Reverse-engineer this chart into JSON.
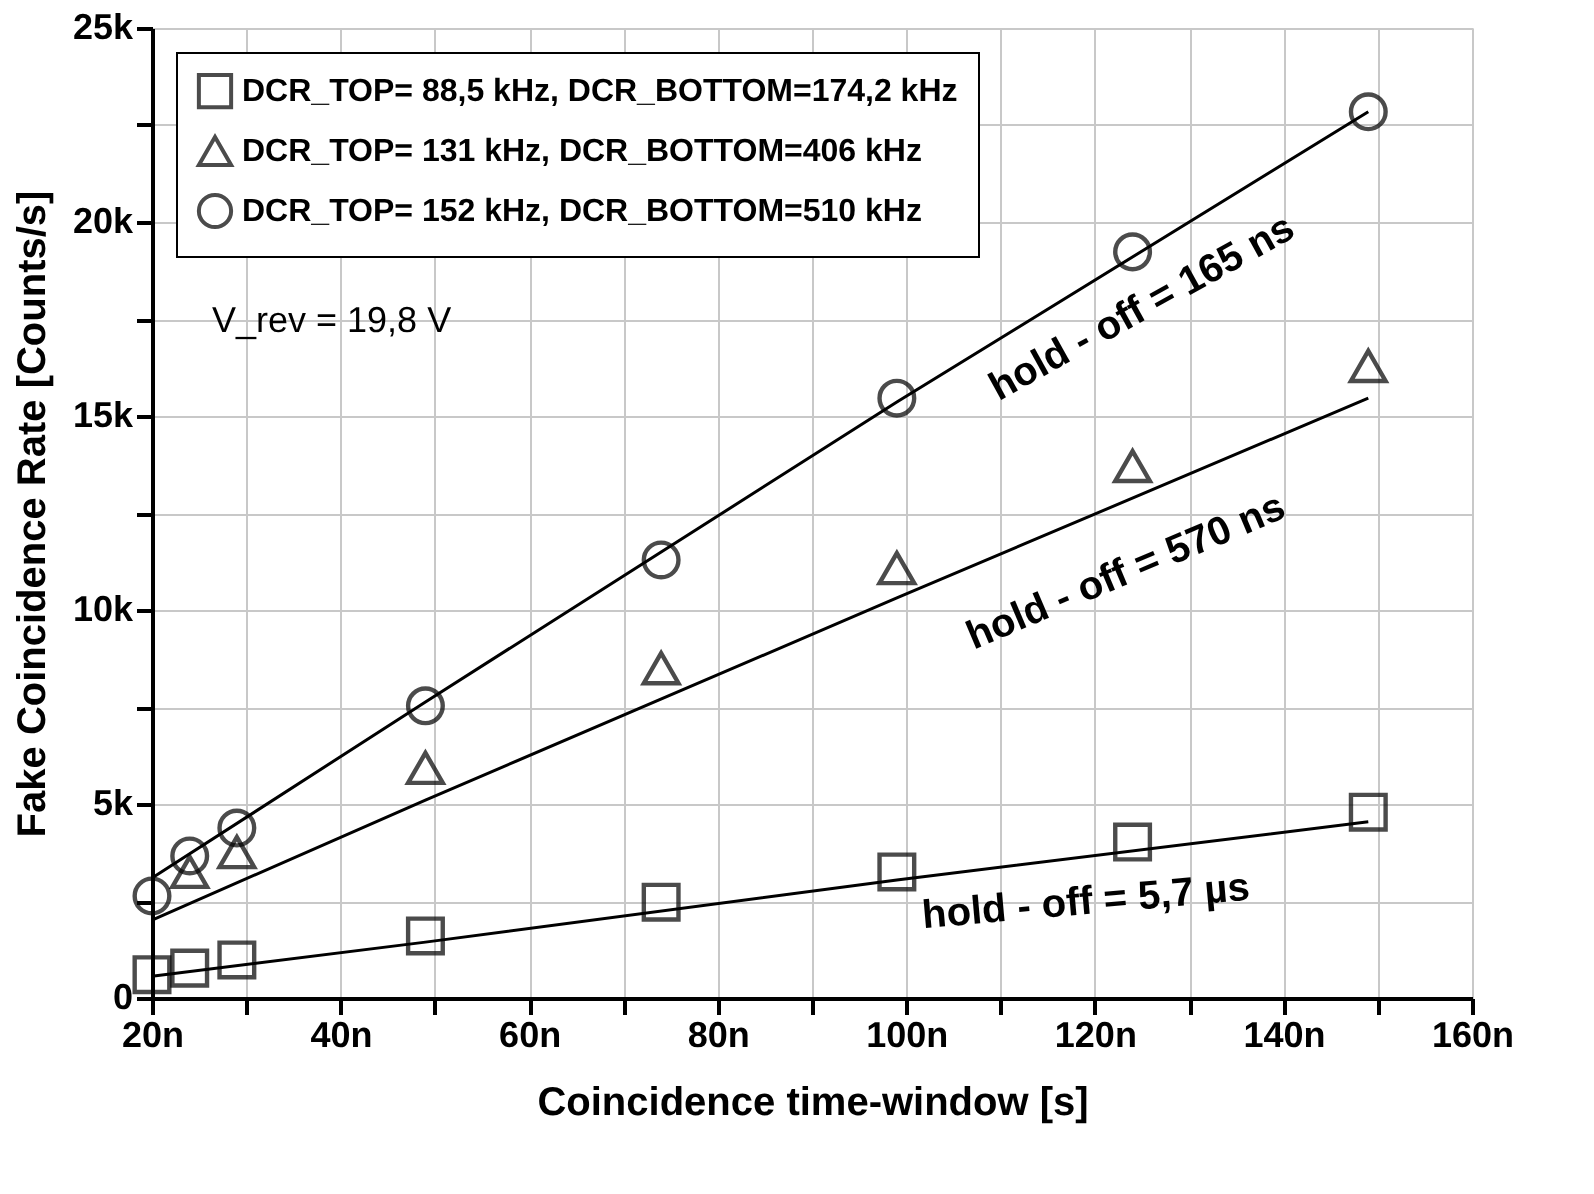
{
  "chart_data": {
    "type": "scatter",
    "xlabel": "Coincidence time-window [s]",
    "ylabel": "Fake Coincidence Rate [Counts/s]",
    "xlim": [
      20,
      160
    ],
    "ylim": [
      0,
      25000
    ],
    "xticks": [
      {
        "value": 20,
        "label": "20n"
      },
      {
        "value": 30,
        "label": null
      },
      {
        "value": 40,
        "label": "40n"
      },
      {
        "value": 50,
        "label": null
      },
      {
        "value": 60,
        "label": "60n"
      },
      {
        "value": 70,
        "label": null
      },
      {
        "value": 80,
        "label": "80n"
      },
      {
        "value": 90,
        "label": null
      },
      {
        "value": 100,
        "label": "100n"
      },
      {
        "value": 110,
        "label": null
      },
      {
        "value": 120,
        "label": "120n"
      },
      {
        "value": 130,
        "label": null
      },
      {
        "value": 140,
        "label": "140n"
      },
      {
        "value": 150,
        "label": null
      },
      {
        "value": 160,
        "label": "160n"
      }
    ],
    "yticks": [
      0,
      {
        "value": 2500,
        "label": null
      },
      {
        "value": 5000,
        "label": "5k"
      },
      {
        "value": 7500,
        "label": null
      },
      {
        "value": 10000,
        "label": "10k"
      },
      {
        "value": 12500,
        "label": null
      },
      {
        "value": 15000,
        "label": "15k"
      },
      {
        "value": 17500,
        "label": null
      },
      {
        "value": 20000,
        "label": "20k"
      },
      {
        "value": 22500,
        "label": null
      },
      {
        "value": 25000,
        "label": "25k"
      }
    ],
    "grid": true,
    "legend": "top left",
    "x": [
      20,
      24,
      29,
      49,
      74,
      99,
      124,
      149
    ],
    "series": [
      {
        "name": "DCR_TOP= 88,5 kHz, DCR_BOTTOM=174,2 kHz",
        "color": "#000000",
        "marker": "square",
        "values": [
          600,
          770,
          980,
          1600,
          2470,
          3250,
          4020,
          4790
        ]
      },
      {
        "name": "DCR_TOP= 131 kHz, DCR_BOTTOM=406 kHz",
        "color": "#000000",
        "marker": "triangle",
        "values": [
          null,
          3250,
          3760,
          5930,
          8500,
          11080,
          13710,
          16290
        ]
      },
      {
        "name": "DCR_TOP= 152 kHz, DCR_BOTTOM=510 kHz",
        "color": "#000000",
        "marker": "circle",
        "values": [
          2630,
          3660,
          4380,
          7530,
          11290,
          15460,
          19230,
          22840
        ]
      },
      {
        "type": "line",
        "color": "#000000",
        "marker": "none",
        "x": [
          20,
          49,
          99,
          149
        ],
        "values": [
          560,
          1440,
          3040,
          4540
        ]
      },
      {
        "type": "line",
        "color": "#000000",
        "marker": "none",
        "x": [
          20,
          49,
          99,
          149
        ],
        "values": [
          2010,
          5100,
          10310,
          15460
        ]
      },
      {
        "type": "line",
        "color": "#000000",
        "marker": "none",
        "x": [
          20,
          49,
          99,
          149
        ],
        "values": [
          3090,
          7630,
          15360,
          22840
        ]
      }
    ],
    "annotations": [
      "V_rev = 19,8 V",
      "hold - off = 165 ns",
      "hold - off = 570 ns",
      "hold - off = 5,7 µs"
    ]
  }
}
